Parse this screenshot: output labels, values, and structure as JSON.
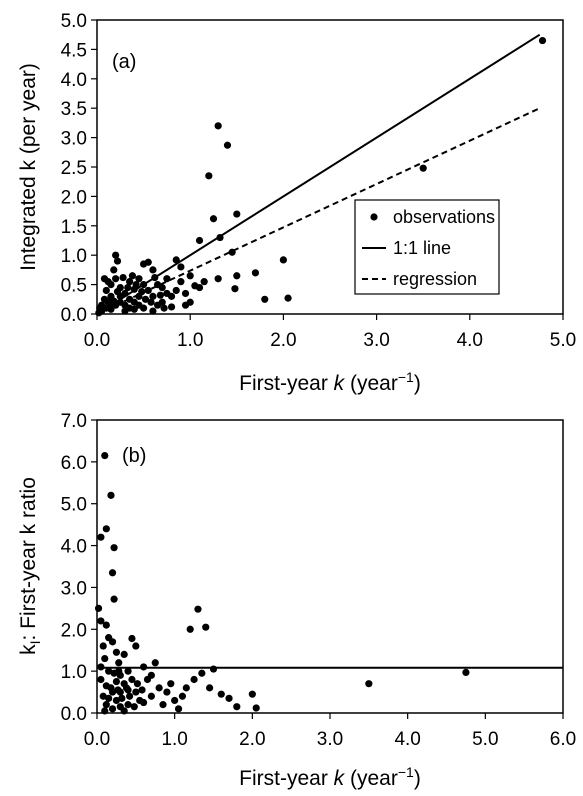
{
  "chart_data": [
    {
      "type": "scatter",
      "panel_label": "(a)",
      "xlabel": "First-year k (year−1)",
      "xlabel_parts": {
        "pre": "First-year ",
        "k": "k",
        "mid": " (year",
        "sup": "−1",
        "post": ")"
      },
      "ylabel": "Integrated k (per year)",
      "xlim": [
        0,
        5
      ],
      "ylim": [
        0,
        5
      ],
      "x_ticks": [
        "0.0",
        "1.0",
        "2.0",
        "3.0",
        "4.0",
        "5.0"
      ],
      "y_ticks": [
        "0.0",
        "0.5",
        "1.0",
        "1.5",
        "2.0",
        "2.5",
        "3.0",
        "3.5",
        "4.0",
        "4.5",
        "5.0"
      ],
      "legend": {
        "position": "right",
        "entries": [
          {
            "label": "observations",
            "style": "marker"
          },
          {
            "label": "1:1 line",
            "style": "solid"
          },
          {
            "label": "regression",
            "style": "dashed"
          }
        ]
      },
      "lines": [
        {
          "name": "1:1 line",
          "style": "solid",
          "points": [
            [
              0,
              0
            ],
            [
              4.75,
              4.75
            ]
          ]
        },
        {
          "name": "regression",
          "style": "dashed",
          "points": [
            [
              0,
              0
            ],
            [
              4.75,
              3.5
            ]
          ]
        }
      ],
      "series": [
        {
          "name": "observations",
          "points": [
            [
              4.78,
              4.65
            ],
            [
              3.5,
              2.48
            ],
            [
              1.3,
              3.2
            ],
            [
              1.4,
              2.87
            ],
            [
              1.2,
              2.35
            ],
            [
              1.25,
              1.62
            ],
            [
              1.5,
              1.7
            ],
            [
              1.32,
              1.3
            ],
            [
              1.1,
              1.25
            ],
            [
              1.45,
              1.05
            ],
            [
              1.5,
              0.65
            ],
            [
              1.7,
              0.7
            ],
            [
              1.48,
              0.43
            ],
            [
              1.8,
              0.25
            ],
            [
              2.0,
              0.92
            ],
            [
              2.05,
              0.27
            ],
            [
              1.3,
              0.6
            ],
            [
              1.15,
              0.55
            ],
            [
              1.05,
              0.48
            ],
            [
              0.85,
              0.92
            ],
            [
              0.9,
              0.55
            ],
            [
              0.95,
              0.35
            ],
            [
              1.0,
              0.2
            ],
            [
              0.75,
              0.6
            ],
            [
              0.8,
              0.3
            ],
            [
              0.7,
              0.45
            ],
            [
              0.65,
              0.15
            ],
            [
              0.6,
              0.75
            ],
            [
              0.55,
              0.88
            ],
            [
              0.5,
              0.85
            ],
            [
              0.5,
              0.5
            ],
            [
              0.45,
              0.6
            ],
            [
              0.45,
              0.3
            ],
            [
              0.4,
              0.42
            ],
            [
              0.4,
              0.2
            ],
            [
              0.35,
              0.55
            ],
            [
              0.35,
              0.25
            ],
            [
              0.3,
              0.35
            ],
            [
              0.3,
              0.15
            ],
            [
              0.25,
              0.45
            ],
            [
              0.25,
              0.2
            ],
            [
              0.2,
              1.0
            ],
            [
              0.22,
              0.9
            ],
            [
              0.18,
              0.75
            ],
            [
              0.2,
              0.6
            ],
            [
              0.15,
              0.5
            ],
            [
              0.15,
              0.3
            ],
            [
              0.12,
              0.55
            ],
            [
              0.12,
              0.2
            ],
            [
              0.1,
              0.4
            ],
            [
              0.1,
              0.1
            ],
            [
              0.08,
              0.25
            ],
            [
              0.05,
              0.15
            ],
            [
              0.05,
              0.05
            ],
            [
              0.03,
              0.1
            ],
            [
              0.02,
              0.02
            ],
            [
              0.3,
              0.05
            ],
            [
              0.4,
              0.08
            ],
            [
              0.5,
              0.1
            ],
            [
              0.6,
              0.05
            ],
            [
              0.7,
              0.2
            ],
            [
              0.8,
              0.12
            ],
            [
              0.6,
              0.3
            ],
            [
              0.55,
              0.4
            ],
            [
              0.65,
              0.5
            ],
            [
              0.35,
              0.1
            ],
            [
              0.2,
              0.15
            ],
            [
              0.25,
              0.3
            ],
            [
              0.45,
              0.15
            ],
            [
              0.15,
              0.08
            ],
            [
              0.75,
              0.35
            ],
            [
              0.85,
              0.4
            ],
            [
              0.9,
              0.8
            ],
            [
              1.0,
              0.65
            ],
            [
              1.1,
              0.45
            ],
            [
              0.28,
              0.62
            ],
            [
              0.38,
              0.65
            ],
            [
              0.33,
              0.45
            ],
            [
              0.22,
              0.38
            ],
            [
              0.18,
              0.22
            ],
            [
              0.58,
              0.2
            ],
            [
              0.68,
              0.32
            ],
            [
              0.52,
              0.25
            ],
            [
              0.42,
              0.5
            ],
            [
              0.08,
              0.6
            ],
            [
              0.14,
              0.12
            ],
            [
              0.48,
              0.38
            ],
            [
              0.62,
              0.62
            ],
            [
              0.72,
              0.1
            ],
            [
              0.95,
              0.15
            ]
          ]
        }
      ]
    },
    {
      "type": "scatter",
      "panel_label": "(b)",
      "xlabel": "First-year k (year−1)",
      "xlabel_parts": {
        "pre": "First-year ",
        "k": "k",
        "mid": " (year",
        "sup": "−1",
        "post": ")"
      },
      "ylabel": "kI: First-year k ratio",
      "ylabel_parts": {
        "pre": "k",
        "sub": "I",
        "post": ": First-year k ratio"
      },
      "xlim": [
        0,
        6
      ],
      "ylim": [
        0,
        7
      ],
      "x_ticks": [
        "0.0",
        "1.0",
        "2.0",
        "3.0",
        "4.0",
        "5.0",
        "6.0"
      ],
      "y_ticks": [
        "0.0",
        "1.0",
        "2.0",
        "3.0",
        "4.0",
        "5.0",
        "6.0",
        "7.0"
      ],
      "lines": [
        {
          "style": "solid",
          "points": [
            [
              0,
              1.08
            ],
            [
              6,
              1.08
            ]
          ]
        }
      ],
      "series": [
        {
          "points": [
            [
              0.1,
              6.15
            ],
            [
              0.18,
              5.2
            ],
            [
              0.12,
              4.4
            ],
            [
              0.05,
              4.2
            ],
            [
              0.22,
              3.95
            ],
            [
              0.2,
              3.35
            ],
            [
              0.22,
              2.72
            ],
            [
              0.02,
              2.5
            ],
            [
              0.05,
              2.2
            ],
            [
              0.12,
              2.1
            ],
            [
              0.2,
              1.7
            ],
            [
              0.25,
              1.45
            ],
            [
              0.15,
              1.8
            ],
            [
              0.08,
              1.6
            ],
            [
              0.28,
              1.2
            ],
            [
              0.3,
              0.9
            ],
            [
              0.35,
              0.7
            ],
            [
              0.1,
              1.3
            ],
            [
              0.15,
              1.0
            ],
            [
              0.2,
              0.5
            ],
            [
              0.25,
              0.3
            ],
            [
              0.3,
              0.15
            ],
            [
              0.05,
              0.8
            ],
            [
              0.08,
              0.4
            ],
            [
              0.12,
              0.2
            ],
            [
              0.4,
              1.0
            ],
            [
              0.45,
              0.8
            ],
            [
              0.5,
              0.5
            ],
            [
              0.55,
              0.3
            ],
            [
              0.45,
              1.78
            ],
            [
              0.5,
              1.6
            ],
            [
              0.6,
              1.1
            ],
            [
              0.7,
              0.9
            ],
            [
              0.8,
              0.6
            ],
            [
              0.9,
              0.5
            ],
            [
              1.0,
              0.3
            ],
            [
              1.1,
              0.4
            ],
            [
              1.2,
              2.0
            ],
            [
              1.3,
              2.48
            ],
            [
              1.4,
              2.05
            ],
            [
              1.35,
              0.95
            ],
            [
              1.25,
              0.8
            ],
            [
              1.45,
              0.6
            ],
            [
              1.5,
              1.05
            ],
            [
              1.6,
              0.45
            ],
            [
              1.7,
              0.35
            ],
            [
              1.8,
              0.15
            ],
            [
              2.0,
              0.45
            ],
            [
              2.05,
              0.12
            ],
            [
              3.5,
              0.7
            ],
            [
              4.75,
              0.97
            ],
            [
              0.35,
              1.4
            ],
            [
              0.4,
              0.2
            ],
            [
              0.6,
              0.25
            ],
            [
              0.7,
              0.4
            ],
            [
              0.75,
              1.2
            ],
            [
              0.85,
              0.2
            ],
            [
              0.95,
              0.7
            ],
            [
              1.05,
              0.1
            ],
            [
              1.15,
              0.6
            ],
            [
              0.18,
              0.6
            ],
            [
              0.22,
              0.95
            ],
            [
              0.27,
              0.55
            ],
            [
              0.32,
              0.35
            ],
            [
              0.38,
              0.6
            ],
            [
              0.42,
              0.4
            ],
            [
              0.48,
              0.15
            ],
            [
              0.52,
              0.7
            ],
            [
              0.58,
              0.55
            ],
            [
              0.65,
              0.8
            ],
            [
              0.1,
              0.05
            ],
            [
              0.15,
              0.35
            ],
            [
              0.2,
              0.1
            ],
            [
              0.25,
              0.75
            ],
            [
              0.3,
              0.5
            ],
            [
              0.35,
              0.05
            ],
            [
              0.4,
              0.55
            ],
            [
              0.05,
              1.1
            ],
            [
              0.12,
              0.65
            ],
            [
              0.28,
              1.0
            ]
          ]
        }
      ]
    }
  ]
}
